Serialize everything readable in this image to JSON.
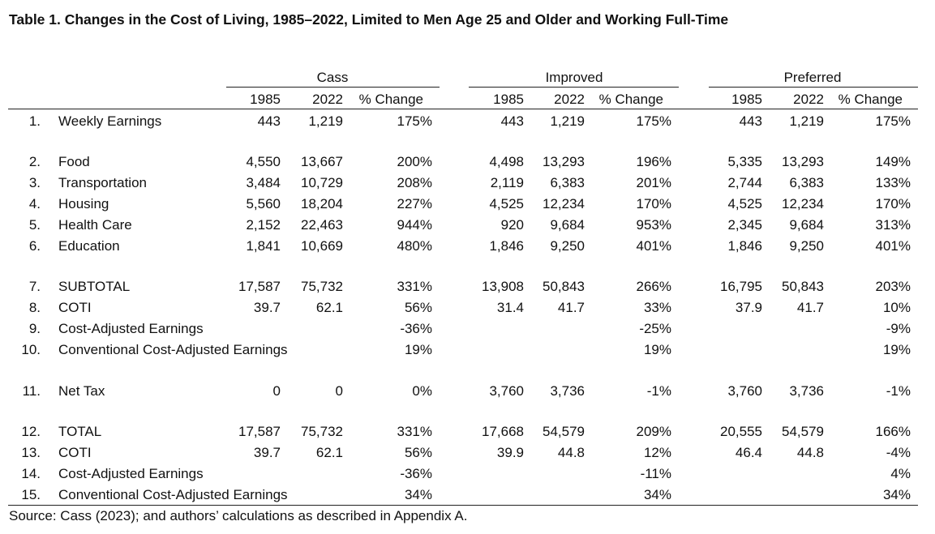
{
  "title": "Table 1. Changes in the Cost of Living, 1985–2022, Limited to Men Age 25 and Older and Working Full-Time",
  "groups": [
    "Cass",
    "Improved",
    "Preferred"
  ],
  "subheaders": [
    "1985",
    "2022",
    "% Change"
  ],
  "rows": [
    {
      "num": "1.",
      "label": "Weekly Earnings",
      "vals": [
        "443",
        "1,219",
        "175%",
        "443",
        "1,219",
        "175%",
        "443",
        "1,219",
        "175%"
      ]
    },
    {
      "num": "2.",
      "label": "Food",
      "vals": [
        "4,550",
        "13,667",
        "200%",
        "4,498",
        "13,293",
        "196%",
        "5,335",
        "13,293",
        "149%"
      ]
    },
    {
      "num": "3.",
      "label": "Transportation",
      "vals": [
        "3,484",
        "10,729",
        "208%",
        "2,119",
        "6,383",
        "201%",
        "2,744",
        "6,383",
        "133%"
      ]
    },
    {
      "num": "4.",
      "label": "Housing",
      "vals": [
        "5,560",
        "18,204",
        "227%",
        "4,525",
        "12,234",
        "170%",
        "4,525",
        "12,234",
        "170%"
      ]
    },
    {
      "num": "5.",
      "label": "Health Care",
      "vals": [
        "2,152",
        "22,463",
        "944%",
        "920",
        "9,684",
        "953%",
        "2,345",
        "9,684",
        "313%"
      ]
    },
    {
      "num": "6.",
      "label": "Education",
      "vals": [
        "1,841",
        "10,669",
        "480%",
        "1,846",
        "9,250",
        "401%",
        "1,846",
        "9,250",
        "401%"
      ]
    },
    {
      "num": "7.",
      "label": "SUBTOTAL",
      "vals": [
        "17,587",
        "75,732",
        "331%",
        "13,908",
        "50,843",
        "266%",
        "16,795",
        "50,843",
        "203%"
      ]
    },
    {
      "num": "8.",
      "label": "COTI",
      "vals": [
        "39.7",
        "62.1",
        "56%",
        "31.4",
        "41.7",
        "33%",
        "37.9",
        "41.7",
        "10%"
      ]
    },
    {
      "num": "9.",
      "label": "Cost-Adjusted Earnings",
      "vals": [
        "",
        "",
        "-36%",
        "",
        "",
        "-25%",
        "",
        "",
        "-9%"
      ]
    },
    {
      "num": "10.",
      "label": "Conventional Cost-Adjusted Earnings",
      "vals": [
        "",
        "",
        "19%",
        "",
        "",
        "19%",
        "",
        "",
        "19%"
      ]
    },
    {
      "num": "11.",
      "label": "Net Tax",
      "vals": [
        "0",
        "0",
        "0%",
        "3,760",
        "3,736",
        "-1%",
        "3,760",
        "3,736",
        "-1%"
      ]
    },
    {
      "num": "12.",
      "label": "TOTAL",
      "vals": [
        "17,587",
        "75,732",
        "331%",
        "17,668",
        "54,579",
        "209%",
        "20,555",
        "54,579",
        "166%"
      ]
    },
    {
      "num": "13.",
      "label": "COTI",
      "vals": [
        "39.7",
        "62.1",
        "56%",
        "39.9",
        "44.8",
        "12%",
        "46.4",
        "44.8",
        "-4%"
      ]
    },
    {
      "num": "14.",
      "label": "Cost-Adjusted Earnings",
      "vals": [
        "",
        "",
        "-36%",
        "",
        "",
        "-11%",
        "",
        "",
        "4%"
      ]
    },
    {
      "num": "15.",
      "label": "Conventional Cost-Adjusted Earnings",
      "vals": [
        "",
        "",
        "34%",
        "",
        "",
        "34%",
        "",
        "",
        "34%"
      ]
    }
  ],
  "source": "Source: Cass (2023); and authors’ calculations as described in Appendix A."
}
